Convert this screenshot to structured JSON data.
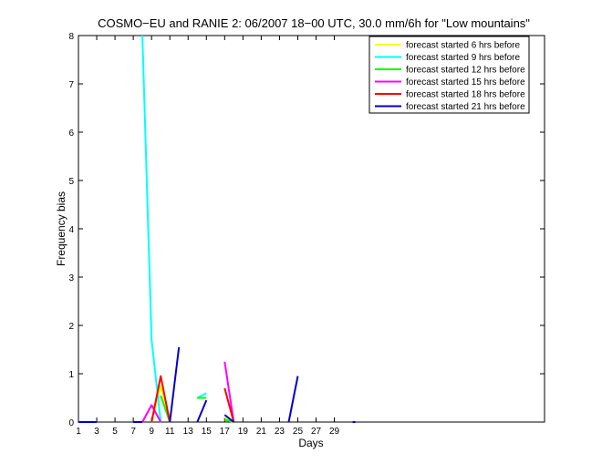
{
  "chart_data": {
    "type": "line",
    "title": "COSMO−EU and RANIE 2: 06/2007 18−00 UTC, 30.0 mm/6h for \"Low mountains\"",
    "xlabel": "Days",
    "ylabel": "Frequency bias",
    "xlim": [
      1,
      52
    ],
    "ylim": [
      0,
      8
    ],
    "xticks": [
      1,
      3,
      5,
      7,
      9,
      11,
      13,
      15,
      17,
      19,
      21,
      23,
      25,
      27,
      29
    ],
    "yticks": [
      0,
      1,
      2,
      3,
      4,
      5,
      6,
      7,
      8
    ],
    "legend_position": "top-right",
    "series": [
      {
        "name": "forecast started 6 hrs before",
        "color": "#ffff00",
        "segments": [
          [
            [
              9,
              0.0
            ],
            [
              10,
              0.75
            ],
            [
              11,
              0.0
            ]
          ],
          [
            [
              17,
              0.1
            ],
            [
              18,
              0.0
            ]
          ]
        ]
      },
      {
        "name": "forecast started 9 hrs before",
        "color": "#00ffff",
        "segments": [
          [
            [
              8,
              8.0
            ],
            [
              9,
              1.7
            ],
            [
              10,
              0.0
            ]
          ],
          [
            [
              14,
              0.5
            ],
            [
              15,
              0.6
            ]
          ]
        ]
      },
      {
        "name": "forecast started 12 hrs before",
        "color": "#00ff00",
        "segments": [
          [
            [
              10,
              0.55
            ],
            [
              11,
              0.0
            ]
          ],
          [
            [
              14,
              0.5
            ],
            [
              15,
              0.5
            ]
          ],
          [
            [
              17,
              0.05
            ],
            [
              18,
              0.0
            ]
          ]
        ]
      },
      {
        "name": "forecast started 15 hrs before",
        "color": "#ff00ff",
        "segments": [
          [
            [
              8,
              0.0
            ],
            [
              9,
              0.35
            ],
            [
              10,
              0.0
            ]
          ],
          [
            [
              17,
              1.25
            ],
            [
              18,
              0.0
            ]
          ]
        ]
      },
      {
        "name": "forecast started 18 hrs before",
        "color": "#ff0000",
        "segments": [
          [
            [
              9,
              0.0
            ],
            [
              10,
              0.95
            ],
            [
              11,
              0.0
            ]
          ],
          [
            [
              17,
              0.7
            ],
            [
              18,
              0.0
            ]
          ]
        ]
      },
      {
        "name": "forecast started 21 hrs before",
        "color": "#0000cc",
        "segments": [
          [
            [
              1,
              0.0
            ],
            [
              3,
              0.0
            ]
          ],
          [
            [
              7,
              0.0
            ],
            [
              8,
              0.0
            ]
          ],
          [
            [
              11,
              0.0
            ],
            [
              12,
              1.55
            ]
          ],
          [
            [
              14,
              0.0
            ],
            [
              15,
              0.45
            ]
          ],
          [
            [
              17,
              0.15
            ],
            [
              18,
              0.0
            ]
          ],
          [
            [
              24,
              0.0
            ],
            [
              25,
              0.95
            ]
          ],
          [
            [
              31,
              0.0
            ],
            [
              31.3,
              0.0
            ]
          ]
        ]
      }
    ]
  }
}
